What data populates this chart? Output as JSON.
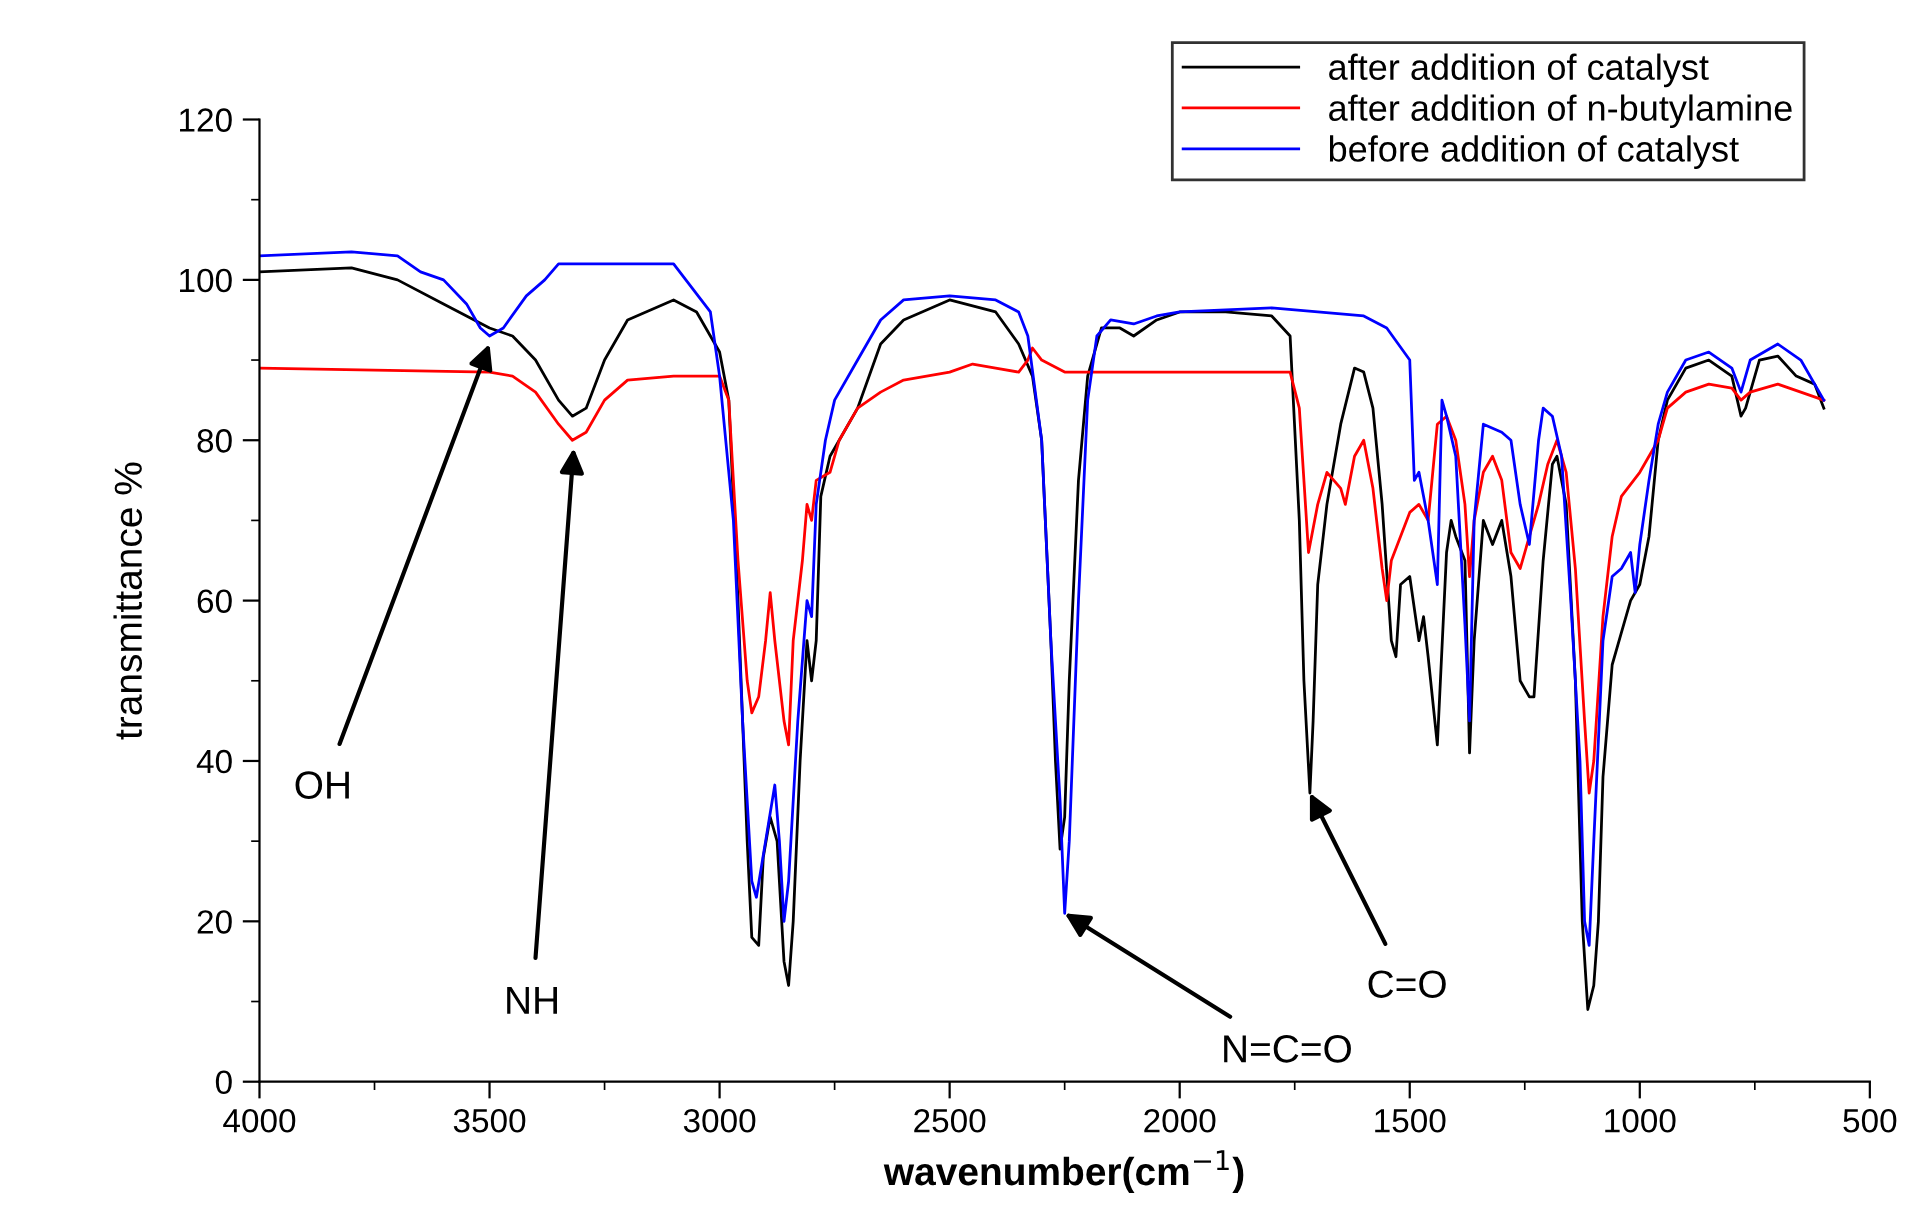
{
  "chart_data": {
    "type": "line",
    "xlabel": "wavenumber(cm$^{−1}$)",
    "ylabel": "transmittance %",
    "xlim": [
      4000,
      500
    ],
    "xticks": [
      4000,
      3500,
      3000,
      2500,
      2000,
      1500,
      1000,
      500
    ],
    "ylim": [
      0,
      120
    ],
    "yticks": [
      0,
      20,
      40,
      60,
      80,
      100,
      120
    ],
    "grid": false,
    "legend": "top right",
    "line_style": "solid",
    "marker": "none",
    "series": [
      {
        "name": "after addition of catalyst",
        "color": "#000000",
        "x": [
          4000,
          3800,
          3700,
          3600,
          3500,
          3450,
          3400,
          3350,
          3320,
          3290,
          3250,
          3200,
          3100,
          3050,
          3000,
          2980,
          2960,
          2940,
          2930,
          2915,
          2905,
          2890,
          2875,
          2860,
          2850,
          2840,
          2825,
          2810,
          2800,
          2790,
          2780,
          2760,
          2740,
          2700,
          2650,
          2600,
          2500,
          2400,
          2350,
          2320,
          2300,
          2280,
          2270,
          2260,
          2250,
          2240,
          2220,
          2200,
          2170,
          2130,
          2100,
          2050,
          2000,
          1900,
          1800,
          1760,
          1740,
          1730,
          1717,
          1710,
          1700,
          1680,
          1650,
          1620,
          1600,
          1580,
          1560,
          1540,
          1530,
          1520,
          1500,
          1480,
          1470,
          1460,
          1440,
          1420,
          1410,
          1400,
          1380,
          1370,
          1360,
          1340,
          1320,
          1300,
          1280,
          1260,
          1240,
          1230,
          1210,
          1190,
          1180,
          1160,
          1140,
          1125,
          1113,
          1100,
          1090,
          1080,
          1060,
          1040,
          1020,
          1000,
          980,
          960,
          940,
          900,
          850,
          800,
          780,
          770,
          740,
          700,
          660,
          620,
          600
        ],
        "values": [
          101,
          101.5,
          100,
          97,
          94,
          93,
          90,
          85,
          83,
          84,
          90,
          95,
          97.5,
          96,
          91,
          85,
          60,
          30,
          18,
          17,
          28,
          33,
          30,
          15,
          12,
          20,
          40,
          55,
          50,
          55,
          73,
          78,
          80,
          84,
          92,
          95,
          97.5,
          96,
          92,
          88,
          80,
          55,
          40,
          29,
          33,
          50,
          75,
          88,
          94,
          94,
          93,
          95,
          96,
          96,
          95.5,
          93,
          70,
          50,
          36,
          45,
          62,
          72,
          82,
          89,
          88.5,
          84,
          72,
          55,
          53,
          62,
          63,
          55,
          58,
          53,
          42,
          66,
          70,
          68,
          65,
          41,
          55,
          70,
          67,
          70,
          63,
          50,
          48,
          48,
          65,
          77,
          78,
          72,
          50,
          20,
          9,
          12,
          20,
          38,
          52,
          56,
          60,
          62,
          68,
          80,
          85,
          89,
          90,
          88,
          83,
          84,
          90,
          90.5,
          88,
          87,
          84
        ]
      },
      {
        "name": "after addition of n-butylamine",
        "color": "#ff0000",
        "x": [
          4000,
          3500,
          3450,
          3400,
          3350,
          3320,
          3290,
          3250,
          3200,
          3100,
          3000,
          2980,
          2960,
          2940,
          2930,
          2915,
          2900,
          2890,
          2880,
          2860,
          2850,
          2840,
          2820,
          2810,
          2800,
          2790,
          2760,
          2740,
          2700,
          2650,
          2600,
          2500,
          2450,
          2400,
          2350,
          2330,
          2320,
          2300,
          2250,
          2000,
          1760,
          1740,
          1720,
          1700,
          1680,
          1650,
          1640,
          1620,
          1600,
          1580,
          1560,
          1550,
          1540,
          1520,
          1500,
          1480,
          1460,
          1450,
          1440,
          1420,
          1400,
          1380,
          1370,
          1360,
          1340,
          1320,
          1300,
          1280,
          1260,
          1240,
          1220,
          1200,
          1180,
          1160,
          1140,
          1120,
          1110,
          1100,
          1080,
          1060,
          1040,
          1000,
          960,
          940,
          900,
          850,
          800,
          780,
          760,
          700,
          650,
          600
        ],
        "values": [
          89,
          88.5,
          88,
          86,
          82,
          80,
          81,
          85,
          87.5,
          88,
          88,
          85,
          65,
          50,
          46,
          48,
          55,
          61,
          55,
          45,
          42,
          55,
          65,
          72,
          70,
          75,
          76,
          80,
          84,
          86,
          87.5,
          88.5,
          89.5,
          89,
          88.5,
          90,
          91.5,
          90,
          88.5,
          88.5,
          88.5,
          84,
          66,
          72,
          76,
          74,
          72,
          78,
          80,
          74,
          64,
          60,
          65,
          68,
          71,
          72,
          70,
          76,
          82,
          83,
          80,
          72,
          63,
          70,
          76,
          78,
          75,
          66,
          64,
          68,
          72,
          77,
          80,
          76,
          64,
          45,
          36,
          40,
          58,
          68,
          73,
          76,
          80,
          84,
          86,
          87,
          86.5,
          85,
          86,
          87,
          86,
          85
        ]
      },
      {
        "name": "before addition of catalyst",
        "color": "#0000ff",
        "x": [
          4000,
          3800,
          3700,
          3650,
          3600,
          3550,
          3520,
          3500,
          3470,
          3420,
          3380,
          3350,
          3100,
          3060,
          3020,
          3000,
          2970,
          2950,
          2930,
          2920,
          2900,
          2880,
          2870,
          2860,
          2850,
          2830,
          2810,
          2800,
          2790,
          2770,
          2750,
          2700,
          2650,
          2600,
          2500,
          2400,
          2350,
          2330,
          2300,
          2280,
          2260,
          2250,
          2240,
          2220,
          2200,
          2180,
          2150,
          2100,
          2050,
          2000,
          1800,
          1700,
          1600,
          1550,
          1500,
          1490,
          1480,
          1470,
          1460,
          1440,
          1430,
          1420,
          1400,
          1380,
          1370,
          1360,
          1340,
          1300,
          1280,
          1260,
          1240,
          1220,
          1210,
          1190,
          1170,
          1150,
          1130,
          1120,
          1110,
          1100,
          1080,
          1060,
          1040,
          1020,
          1010,
          1000,
          980,
          960,
          940,
          900,
          850,
          800,
          780,
          760,
          700,
          650,
          600
        ],
        "values": [
          103,
          103.5,
          103,
          101,
          100,
          97,
          94,
          93,
          94,
          98,
          100,
          102,
          102,
          99,
          96,
          88,
          70,
          45,
          25,
          23,
          30,
          37,
          30,
          20,
          25,
          45,
          60,
          58,
          72,
          80,
          85,
          90,
          95,
          97.5,
          98,
          97.5,
          96,
          93,
          80,
          55,
          35,
          21,
          30,
          60,
          85,
          93,
          95,
          94.5,
          95.5,
          96,
          96.5,
          96,
          95.5,
          94,
          90,
          75,
          76,
          73,
          70,
          62,
          85,
          83,
          78,
          57,
          45,
          70,
          82,
          81,
          80,
          72,
          67,
          80,
          84,
          83,
          78,
          60,
          40,
          20,
          17,
          30,
          55,
          63,
          64,
          66,
          61,
          67,
          75,
          82,
          86,
          90,
          91,
          89,
          86,
          90,
          92,
          90,
          85
        ]
      }
    ],
    "annotations": [
      {
        "text": "OH",
        "x": 3500,
        "y": 92
      },
      {
        "text": "NH",
        "x": 3317,
        "y": 79
      },
      {
        "text": "N=C=O",
        "x": 2250,
        "y": 21
      },
      {
        "text": "C=O",
        "x": 1717,
        "y": 36
      }
    ]
  }
}
